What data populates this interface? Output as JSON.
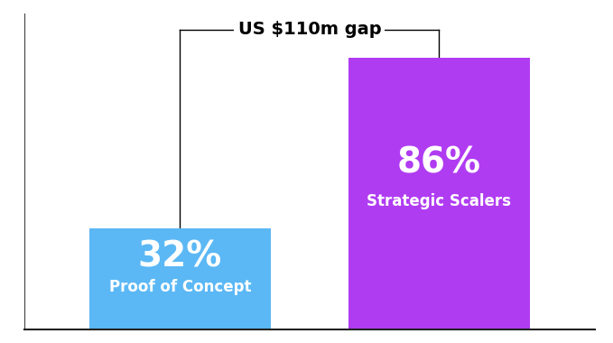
{
  "chart_data": {
    "type": "bar",
    "categories": [
      "Proof of Concept",
      "Strategic Scalers"
    ],
    "values": [
      32,
      86
    ],
    "value_labels": [
      "32%",
      "86%"
    ],
    "colors": [
      "#5bb8f5",
      "#b03cf2"
    ],
    "ylim": [
      0,
      100
    ],
    "yticks": [],
    "data_labels": true,
    "tick_labels": false,
    "annotation": "US $110m gap"
  }
}
